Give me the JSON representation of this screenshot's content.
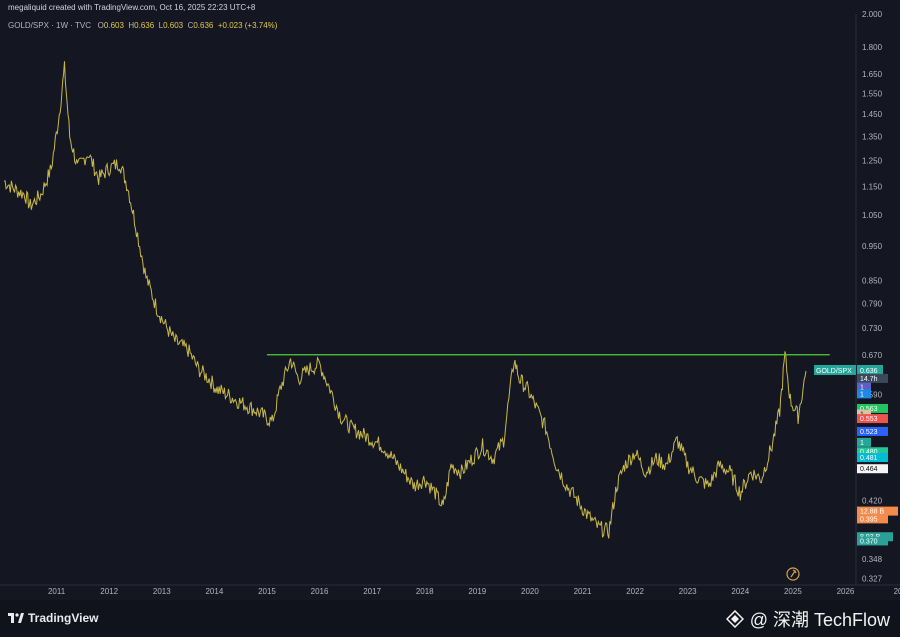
{
  "header": {
    "credit": "megaliquid created with TradingView.com, Oct 16, 2025 22:23 UTC+8",
    "symbol_line": "GOLD/SPX · 1W · TVC",
    "ohlc": {
      "o_label": "O",
      "o": "0.603",
      "h_label": "H",
      "h": "0.636",
      "l_label": "L",
      "l": "0.603",
      "c_label": "C",
      "c": "0.636",
      "change": "+0.023 (+3.74%)"
    }
  },
  "footer": {
    "brand": "TradingView",
    "watermark": "@ 深潮 TechFlow"
  },
  "colors": {
    "background": "#141722",
    "price_line": "#c8b84a",
    "resistance": "#4cd137",
    "label_teal": "#26a69a"
  },
  "chart_data": {
    "type": "line",
    "symbol": "GOLD/SPX",
    "interval": "1W",
    "y_scale": "log",
    "ylim": [
      0.32,
      2.0
    ],
    "xlim": [
      2010.5,
      2026.7
    ],
    "x_ticks": [
      "2011",
      "2012",
      "2013",
      "2014",
      "2015",
      "2016",
      "2017",
      "2018",
      "2019",
      "2020",
      "2021",
      "2022",
      "2023",
      "2024",
      "2025",
      "2026",
      "20"
    ],
    "y_ticks": [
      "2.000",
      "1.800",
      "1.650",
      "1.550",
      "1.450",
      "1.350",
      "1.250",
      "1.150",
      "1.050",
      "0.950",
      "0.850",
      "0.790",
      "0.730",
      "0.670",
      "0.590",
      "0.420",
      "0.348",
      "0.327"
    ],
    "series": [
      {
        "values_x": [
          2010.5,
          2010.7,
          2010.9,
          2011.0,
          2011.2,
          2011.4,
          2011.55,
          2011.65,
          2011.75,
          2011.9,
          2012.1,
          2012.3,
          2012.5,
          2012.7,
          2012.85,
          2013.0,
          2013.2,
          2013.4,
          2013.55,
          2013.75,
          2014.0,
          2014.2,
          2014.4,
          2014.55,
          2014.75,
          2014.9,
          2015.1,
          2015.3,
          2015.45,
          2015.6,
          2015.75,
          2015.95,
          2016.1,
          2016.3,
          2016.5,
          2016.7,
          2016.9,
          2017.1,
          2017.3,
          2017.5,
          2017.7,
          2017.9,
          2018.1,
          2018.3,
          2018.5,
          2018.7,
          2018.85,
          2019.0,
          2019.2,
          2019.4,
          2019.6,
          2019.8,
          2020.0,
          2020.2,
          2020.3,
          2020.45,
          2020.6,
          2020.8,
          2021.0,
          2021.2,
          2021.4,
          2021.6,
          2021.8,
          2022.0,
          2022.15,
          2022.3,
          2022.5,
          2022.7,
          2022.9,
          2023.1,
          2023.3,
          2023.5,
          2023.7,
          2023.9,
          2024.1,
          2024.3,
          2024.5,
          2024.7,
          2024.9,
          2025.1,
          2025.25,
          2025.35,
          2025.45,
          2025.6,
          2025.75
        ],
        "values_y": [
          1.17,
          1.14,
          1.12,
          1.08,
          1.12,
          1.22,
          1.45,
          1.68,
          1.35,
          1.22,
          1.28,
          1.18,
          1.22,
          1.24,
          1.15,
          1.02,
          0.86,
          0.78,
          0.74,
          0.7,
          0.68,
          0.64,
          0.62,
          0.6,
          0.59,
          0.58,
          0.57,
          0.56,
          0.55,
          0.54,
          0.6,
          0.66,
          0.62,
          0.64,
          0.65,
          0.6,
          0.55,
          0.53,
          0.52,
          0.51,
          0.5,
          0.48,
          0.46,
          0.44,
          0.45,
          0.43,
          0.41,
          0.47,
          0.46,
          0.48,
          0.5,
          0.48,
          0.51,
          0.66,
          0.62,
          0.6,
          0.57,
          0.53,
          0.47,
          0.44,
          0.42,
          0.4,
          0.385,
          0.38,
          0.44,
          0.47,
          0.49,
          0.46,
          0.48,
          0.47,
          0.51,
          0.47,
          0.45,
          0.44,
          0.47,
          0.46,
          0.43,
          0.46,
          0.45,
          0.5,
          0.56,
          0.67,
          0.58,
          0.55,
          0.636
        ]
      }
    ],
    "resistance_level": 0.67,
    "resistance_range": [
      2015.5,
      2026.2
    ],
    "price_labels": [
      {
        "text": "GOLD/SPX",
        "sub": "0.636",
        "color": "#26a69a"
      },
      {
        "text": "14.7h",
        "color": "#3a4a5c"
      },
      {
        "text": "1",
        "color": "#5b5fc7"
      },
      {
        "text": "1",
        "color": "#1e88e5"
      },
      {
        "text": "0.563",
        "color": "#22c55e"
      },
      {
        "text": "1",
        "color": "#d6c6a0"
      },
      {
        "text": "0.553",
        "color": "#ef5350"
      },
      {
        "text": "0.523",
        "color": "#2962ff"
      },
      {
        "text": "1",
        "color": "#26a69a"
      },
      {
        "text": "0.480",
        "color": "#20c997"
      },
      {
        "text": "0.481",
        "color": "#00bcd4"
      },
      {
        "text": "0.464",
        "color": "#f5f5f5"
      },
      {
        "text": "12.88 B",
        "color": "#f28b4b"
      },
      {
        "text": "0.395",
        "color": "#f28b4b"
      },
      {
        "text": "8.93 B",
        "color": "#2aa198"
      },
      {
        "text": "0.370",
        "color": "#2aa198"
      }
    ]
  }
}
